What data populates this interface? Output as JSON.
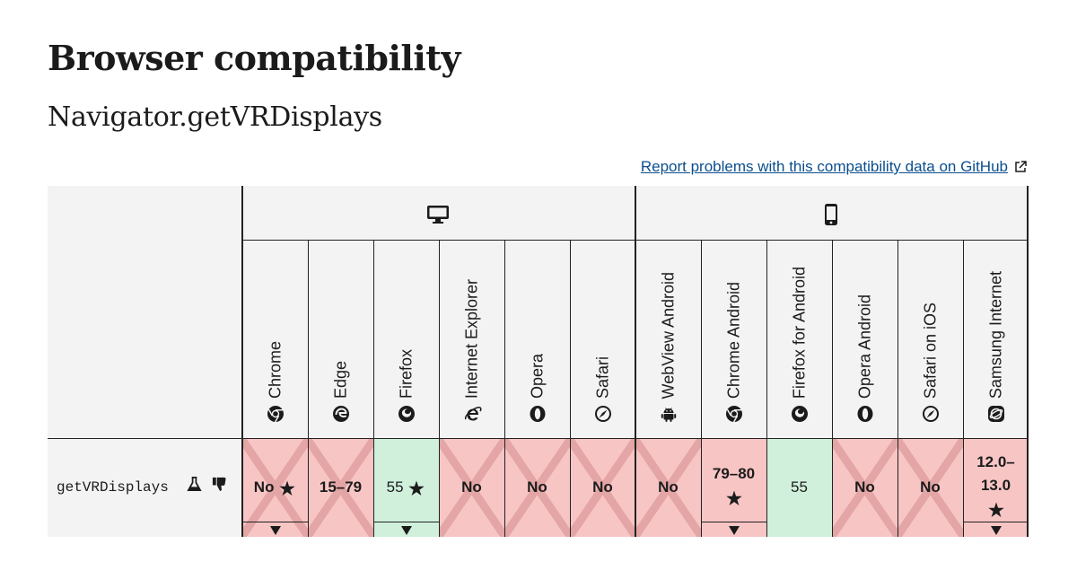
{
  "page": {
    "title": "Browser compatibility",
    "subtitle": "Navigator.getVRDisplays",
    "report_link": "Report problems with this compatibility data on GitHub"
  },
  "platforms": [
    {
      "name": "desktop",
      "icon": "desktop-icon"
    },
    {
      "name": "mobile",
      "icon": "mobile-icon"
    }
  ],
  "browsers": [
    {
      "name": "Chrome",
      "icon": "chrome-icon"
    },
    {
      "name": "Edge",
      "icon": "edge-icon"
    },
    {
      "name": "Firefox",
      "icon": "firefox-icon"
    },
    {
      "name": "Internet Explorer",
      "icon": "ie-icon"
    },
    {
      "name": "Opera",
      "icon": "opera-icon"
    },
    {
      "name": "Safari",
      "icon": "safari-icon"
    },
    {
      "name": "WebView Android",
      "icon": "android-icon"
    },
    {
      "name": "Chrome Android",
      "icon": "chrome-icon"
    },
    {
      "name": "Firefox for Android",
      "icon": "firefox-icon"
    },
    {
      "name": "Opera Android",
      "icon": "opera-icon"
    },
    {
      "name": "Safari on iOS",
      "icon": "safari-icon"
    },
    {
      "name": "Samsung Internet",
      "icon": "samsung-icon"
    }
  ],
  "feature": {
    "name": "getVRDisplays",
    "icons": [
      "experimental-icon",
      "deprecated-icon"
    ]
  },
  "support": [
    {
      "browser": "Chrome",
      "text": "No",
      "status": "no",
      "star": true,
      "toggle": true
    },
    {
      "browser": "Edge",
      "text": "15–79",
      "status": "no",
      "star": false,
      "toggle": false
    },
    {
      "browser": "Firefox",
      "text": "55",
      "status": "yes",
      "star": true,
      "toggle": true
    },
    {
      "browser": "Internet Explorer",
      "text": "No",
      "status": "no",
      "star": false,
      "toggle": false
    },
    {
      "browser": "Opera",
      "text": "No",
      "status": "no",
      "star": false,
      "toggle": false
    },
    {
      "browser": "Safari",
      "text": "No",
      "status": "no",
      "star": false,
      "toggle": false
    },
    {
      "browser": "WebView Android",
      "text": "No",
      "status": "no",
      "star": false,
      "toggle": false
    },
    {
      "browser": "Chrome Android",
      "text": "79–80",
      "status": "no",
      "star": true,
      "toggle": true
    },
    {
      "browser": "Firefox for Android",
      "text": "55",
      "status": "yes",
      "star": false,
      "toggle": false
    },
    {
      "browser": "Opera Android",
      "text": "No",
      "status": "no",
      "star": false,
      "toggle": false
    },
    {
      "browser": "Safari on iOS",
      "text": "No",
      "status": "no",
      "star": false,
      "toggle": false
    },
    {
      "browser": "Samsung Internet",
      "text": "12.0–13.0",
      "status": "no",
      "star": true,
      "toggle": true
    }
  ],
  "colors": {
    "no_support": "#f8c5c5",
    "full_support": "#d0f0dc",
    "header_bg": "#f3f3f3",
    "link": "#0b4e8e"
  }
}
